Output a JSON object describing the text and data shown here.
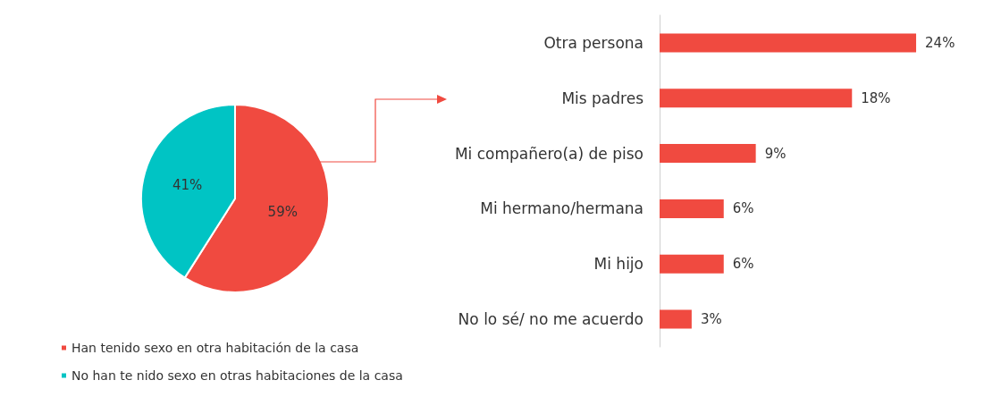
{
  "chart_data": [
    {
      "type": "pie",
      "categories": [
        "Han tenido sexo en otra habitación de la casa",
        "No han te nido sexo en otras habitaciones de la casa"
      ],
      "values": [
        59,
        41
      ],
      "colors": [
        "#f04a40",
        "#00c4c4"
      ],
      "value_labels": [
        "59%",
        "41%"
      ],
      "legend": "bottom left"
    },
    {
      "type": "bar",
      "orientation": "horizontal",
      "categories": [
        "Otra persona",
        "Mis padres",
        "Mi compañero(a) de piso",
        "Mi hermano/hermana",
        "Mi hijo",
        "No lo sé/ no me acuerdo"
      ],
      "values": [
        24,
        18,
        9,
        6,
        6,
        3
      ],
      "value_labels": [
        "24%",
        "18%",
        "9%",
        "6%",
        "6%",
        "3%"
      ],
      "color": "#f04a40"
    }
  ]
}
